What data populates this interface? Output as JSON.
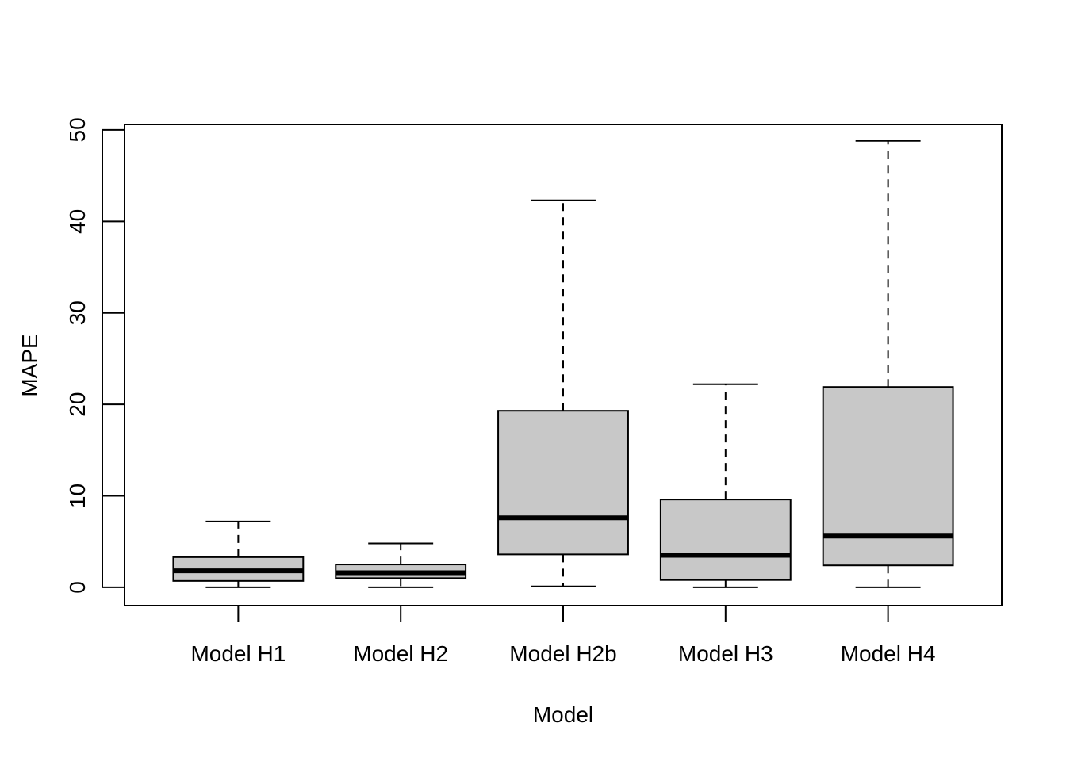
{
  "chart_data": {
    "type": "boxplot",
    "title": "",
    "xlabel": "Model",
    "ylabel": "MAPE",
    "ylim": [
      -2,
      50.6
    ],
    "yticks": [
      0,
      10,
      20,
      30,
      40,
      50
    ],
    "yticks_text": [
      "0",
      "10",
      "20",
      "30",
      "40",
      "50"
    ],
    "grid": false,
    "box_fill": "#c8c8c8",
    "line_color": "#000000",
    "categories": [
      "Model H1",
      "Model H2",
      "Model H2b",
      "Model H3",
      "Model H4"
    ],
    "boxes": [
      {
        "name": "Model H1",
        "min": 0.0,
        "q1": 0.7,
        "median": 1.8,
        "q3": 3.3,
        "max": 7.2
      },
      {
        "name": "Model H2",
        "min": 0.0,
        "q1": 1.0,
        "median": 1.6,
        "q3": 2.5,
        "max": 4.8
      },
      {
        "name": "Model H2b",
        "min": 0.1,
        "q1": 3.6,
        "median": 7.6,
        "q3": 19.3,
        "max": 42.3
      },
      {
        "name": "Model H3",
        "min": 0.0,
        "q1": 0.8,
        "median": 3.5,
        "q3": 9.6,
        "max": 22.2
      },
      {
        "name": "Model H4",
        "min": 0.0,
        "q1": 2.4,
        "median": 5.6,
        "q3": 21.9,
        "max": 48.8
      }
    ]
  }
}
